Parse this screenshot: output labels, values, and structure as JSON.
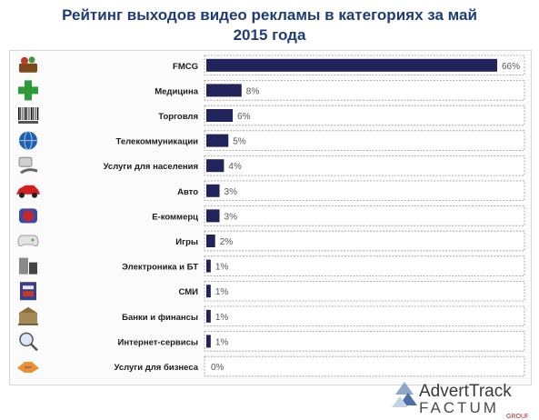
{
  "chart_data": {
    "type": "bar",
    "orientation": "horizontal",
    "title_line1": "Рейтинг выходов видео рекламы в категориях за май",
    "title_line2": "2015 года",
    "categories": [
      "FMCG",
      "Медицина",
      "Торговля",
      "Телекоммуникации",
      "Услуги для населения",
      "Авто",
      "Е-коммерц",
      "Игры",
      "Электроника и БТ",
      "СМИ",
      "Банки и финансы",
      "Интернет-сервисы",
      "Услуги для бизнеса"
    ],
    "values": [
      66,
      8,
      6,
      5,
      4,
      3,
      3,
      2,
      1,
      1,
      1,
      1,
      0
    ],
    "value_labels": [
      "66%",
      "8%",
      "6%",
      "5%",
      "4%",
      "3%",
      "3%",
      "2%",
      "1%",
      "1%",
      "1%",
      "1%",
      "0%"
    ],
    "icons": [
      "shopping-basket-icon",
      "medical-cross-icon",
      "barcode-icon",
      "globe-icon",
      "service-hand-icon",
      "red-car-icon",
      "shopping-cart-icon",
      "gamepad-icon",
      "electronics-icon",
      "newspaper-icon",
      "bank-icon",
      "magnifier-icon",
      "handshake-icon"
    ],
    "xlim": [
      0,
      66
    ],
    "grid": false,
    "bar_color": "#22235a",
    "title_color": "#1f3c78"
  },
  "brand": {
    "line1": "AdvertTrack",
    "line2": "FACTUM",
    "line3": "GROUP"
  }
}
